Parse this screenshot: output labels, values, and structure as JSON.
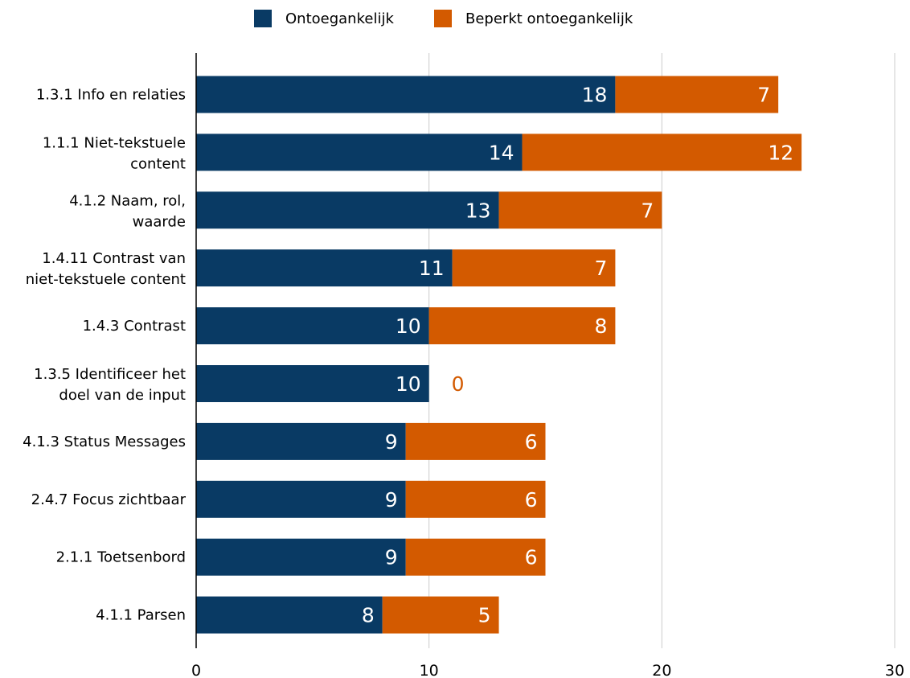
{
  "chart_data": {
    "type": "bar",
    "orientation": "horizontal",
    "stacked": true,
    "categories": [
      [
        "1.3.1 Info en relaties"
      ],
      [
        "1.1.1 Niet-tekstuele",
        "content"
      ],
      [
        "4.1.2 Naam, rol,",
        "waarde"
      ],
      [
        "1.4.11 Contrast van",
        "niet-tekstuele content"
      ],
      [
        "1.4.3 Contrast"
      ],
      [
        "1.3.5 Identificeer het",
        "doel van de input"
      ],
      [
        "4.1.3 Status Messages"
      ],
      [
        "2.4.7 Focus zichtbaar"
      ],
      [
        "2.1.1 Toetsenbord"
      ],
      [
        "4.1.1 Parsen"
      ]
    ],
    "series": [
      {
        "name": "Ontoegankelijk",
        "color": "#093a64",
        "values": [
          18,
          14,
          13,
          11,
          10,
          10,
          9,
          9,
          9,
          8
        ]
      },
      {
        "name": "Beperkt ontoegankelijk",
        "color": "#d35a00",
        "values": [
          7,
          12,
          7,
          7,
          8,
          0,
          6,
          6,
          6,
          5
        ]
      }
    ],
    "xlim": [
      0,
      30
    ],
    "xticks": [
      0,
      10,
      20,
      30
    ],
    "grid": true,
    "legend_position": "top-center",
    "data_labels": true
  }
}
